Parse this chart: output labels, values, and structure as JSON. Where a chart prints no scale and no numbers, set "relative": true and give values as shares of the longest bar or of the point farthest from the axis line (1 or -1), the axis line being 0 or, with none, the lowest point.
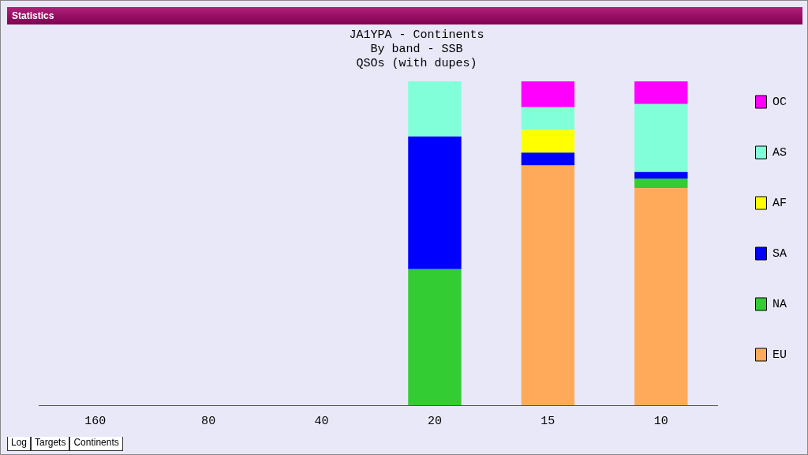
{
  "chart_data": {
    "type": "bar",
    "title": "JA1YPA - Continents",
    "subtitle": "By band - SSB\nQSOs (with dupes)",
    "categories": [
      "160",
      "80",
      "40",
      "20",
      "15",
      "10"
    ],
    "stacked": true,
    "relative": true,
    "legend": "right",
    "annotations": [
      "Statistics",
      "Log",
      "Targets",
      "Continents"
    ],
    "series": [
      {
        "name": "EU",
        "color": "#ffaa5a",
        "values": [
          null,
          null,
          null,
          null,
          0.74,
          0.67
        ]
      },
      {
        "name": "NA",
        "color": "#33cc33",
        "values": [
          null,
          null,
          null,
          0.42,
          null,
          0.03
        ]
      },
      {
        "name": "SA",
        "color": "#0000ff",
        "values": [
          null,
          null,
          null,
          0.41,
          0.04,
          0.02
        ]
      },
      {
        "name": "AF",
        "color": "#ffff00",
        "values": [
          null,
          null,
          null,
          null,
          0.07,
          null
        ]
      },
      {
        "name": "AS",
        "color": "#80ffd8",
        "values": [
          null,
          null,
          null,
          0.17,
          0.07,
          0.21
        ]
      },
      {
        "name": "OC",
        "color": "#ff00ff",
        "values": [
          null,
          null,
          null,
          null,
          0.08,
          0.07
        ]
      }
    ]
  }
}
